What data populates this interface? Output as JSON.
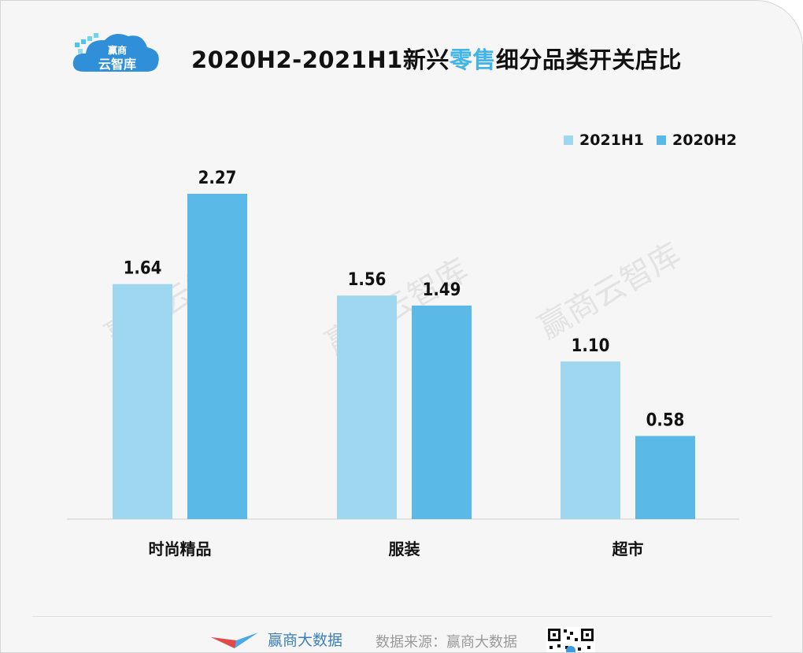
{
  "brand": {
    "logo_line1": "赢商",
    "logo_line2": "云智库"
  },
  "title": {
    "part1": "2020H2-2021H1新兴",
    "highlight": "零售",
    "part2": "细分品类开关店比"
  },
  "watermark": "赢商云智库",
  "colors": {
    "series_2021H1": "#9fd6f0",
    "series_2020H2": "#5ab9e6",
    "accent": "#41b4e8"
  },
  "chart_data": {
    "type": "bar",
    "categories": [
      "时尚精品",
      "服装",
      "超市"
    ],
    "series": [
      {
        "name": "2021H1",
        "values": [
          1.64,
          1.56,
          1.1
        ]
      },
      {
        "name": "2020H2",
        "values": [
          2.27,
          1.49,
          0.58
        ]
      }
    ],
    "value_labels": [
      [
        "1.64",
        "1.56",
        "1.10"
      ],
      [
        "2.27",
        "1.49",
        "0.58"
      ]
    ],
    "ylim": [
      0,
      2.4
    ],
    "legend_position": "top-right",
    "grid": false
  },
  "footer": {
    "brand_text": "赢商大数据",
    "source_text": "数据来源：赢商大数据"
  }
}
